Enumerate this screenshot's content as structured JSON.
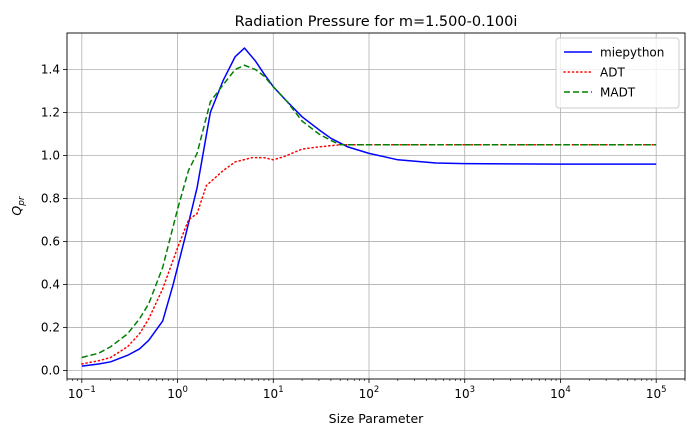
{
  "chart_data": {
    "type": "line",
    "title": "Radiation Pressure for m=1.500-0.100i",
    "xlabel": "Size Parameter",
    "ylabel_base": "Q",
    "ylabel_sub": "pr",
    "xscale": "log",
    "xlim": [
      0.07,
      200000
    ],
    "ylim": [
      -0.04,
      1.57
    ],
    "x_ticks": [
      {
        "value": 0.1,
        "base": "10",
        "exp": "−1"
      },
      {
        "value": 1,
        "base": "10",
        "exp": "0"
      },
      {
        "value": 10,
        "base": "10",
        "exp": "1"
      },
      {
        "value": 100,
        "base": "10",
        "exp": "2"
      },
      {
        "value": 1000,
        "base": "10",
        "exp": "3"
      },
      {
        "value": 10000,
        "base": "10",
        "exp": "4"
      },
      {
        "value": 100000,
        "base": "10",
        "exp": "5"
      }
    ],
    "y_ticks": [
      {
        "value": 0.0,
        "label": "0.0"
      },
      {
        "value": 0.2,
        "label": "0.2"
      },
      {
        "value": 0.4,
        "label": "0.4"
      },
      {
        "value": 0.6,
        "label": "0.6"
      },
      {
        "value": 0.8,
        "label": "0.8"
      },
      {
        "value": 1.0,
        "label": "1.0"
      },
      {
        "value": 1.2,
        "label": "1.2"
      },
      {
        "value": 1.4,
        "label": "1.4"
      }
    ],
    "grid": true,
    "legend_position": "top-right",
    "series": [
      {
        "name": "miepython",
        "color": "#0000ff",
        "style": "solid",
        "points": [
          [
            0.1,
            0.02
          ],
          [
            0.15,
            0.03
          ],
          [
            0.2,
            0.04
          ],
          [
            0.3,
            0.07
          ],
          [
            0.4,
            0.1
          ],
          [
            0.5,
            0.14
          ],
          [
            0.7,
            0.23
          ],
          [
            0.9,
            0.4
          ],
          [
            1.2,
            0.62
          ],
          [
            1.6,
            0.85
          ],
          [
            2.2,
            1.2
          ],
          [
            3,
            1.35
          ],
          [
            4,
            1.46
          ],
          [
            5,
            1.5
          ],
          [
            6.5,
            1.44
          ],
          [
            8,
            1.38
          ],
          [
            10,
            1.32
          ],
          [
            14,
            1.25
          ],
          [
            20,
            1.18
          ],
          [
            30,
            1.12
          ],
          [
            40,
            1.08
          ],
          [
            60,
            1.04
          ],
          [
            100,
            1.01
          ],
          [
            200,
            0.98
          ],
          [
            500,
            0.965
          ],
          [
            1000,
            0.962
          ],
          [
            10000,
            0.96
          ],
          [
            100000,
            0.96
          ]
        ]
      },
      {
        "name": "ADT",
        "color": "#ff0000",
        "style": "dotted",
        "points": [
          [
            0.1,
            0.03
          ],
          [
            0.15,
            0.045
          ],
          [
            0.2,
            0.06
          ],
          [
            0.3,
            0.11
          ],
          [
            0.4,
            0.17
          ],
          [
            0.5,
            0.24
          ],
          [
            0.7,
            0.38
          ],
          [
            1,
            0.57
          ],
          [
            1.3,
            0.7
          ],
          [
            1.6,
            0.73
          ],
          [
            2,
            0.86
          ],
          [
            3,
            0.93
          ],
          [
            4,
            0.97
          ],
          [
            6,
            0.99
          ],
          [
            8,
            0.99
          ],
          [
            10,
            0.98
          ],
          [
            13,
            0.995
          ],
          [
            20,
            1.03
          ],
          [
            30,
            1.04
          ],
          [
            50,
            1.05
          ],
          [
            100,
            1.05
          ],
          [
            1000,
            1.05
          ],
          [
            10000,
            1.05
          ],
          [
            100000,
            1.05
          ]
        ]
      },
      {
        "name": "MADT",
        "color": "#008000",
        "style": "dashed",
        "points": [
          [
            0.1,
            0.06
          ],
          [
            0.15,
            0.08
          ],
          [
            0.2,
            0.11
          ],
          [
            0.3,
            0.17
          ],
          [
            0.4,
            0.24
          ],
          [
            0.5,
            0.31
          ],
          [
            0.7,
            0.48
          ],
          [
            1,
            0.75
          ],
          [
            1.3,
            0.93
          ],
          [
            1.6,
            1.01
          ],
          [
            2.2,
            1.25
          ],
          [
            3,
            1.33
          ],
          [
            4,
            1.4
          ],
          [
            5,
            1.42
          ],
          [
            6.5,
            1.4
          ],
          [
            8,
            1.37
          ],
          [
            10,
            1.32
          ],
          [
            14,
            1.25
          ],
          [
            20,
            1.16
          ],
          [
            30,
            1.1
          ],
          [
            40,
            1.07
          ],
          [
            50,
            1.05
          ],
          [
            100,
            1.05
          ],
          [
            1000,
            1.05
          ],
          [
            10000,
            1.05
          ],
          [
            100000,
            1.05
          ]
        ]
      }
    ]
  }
}
